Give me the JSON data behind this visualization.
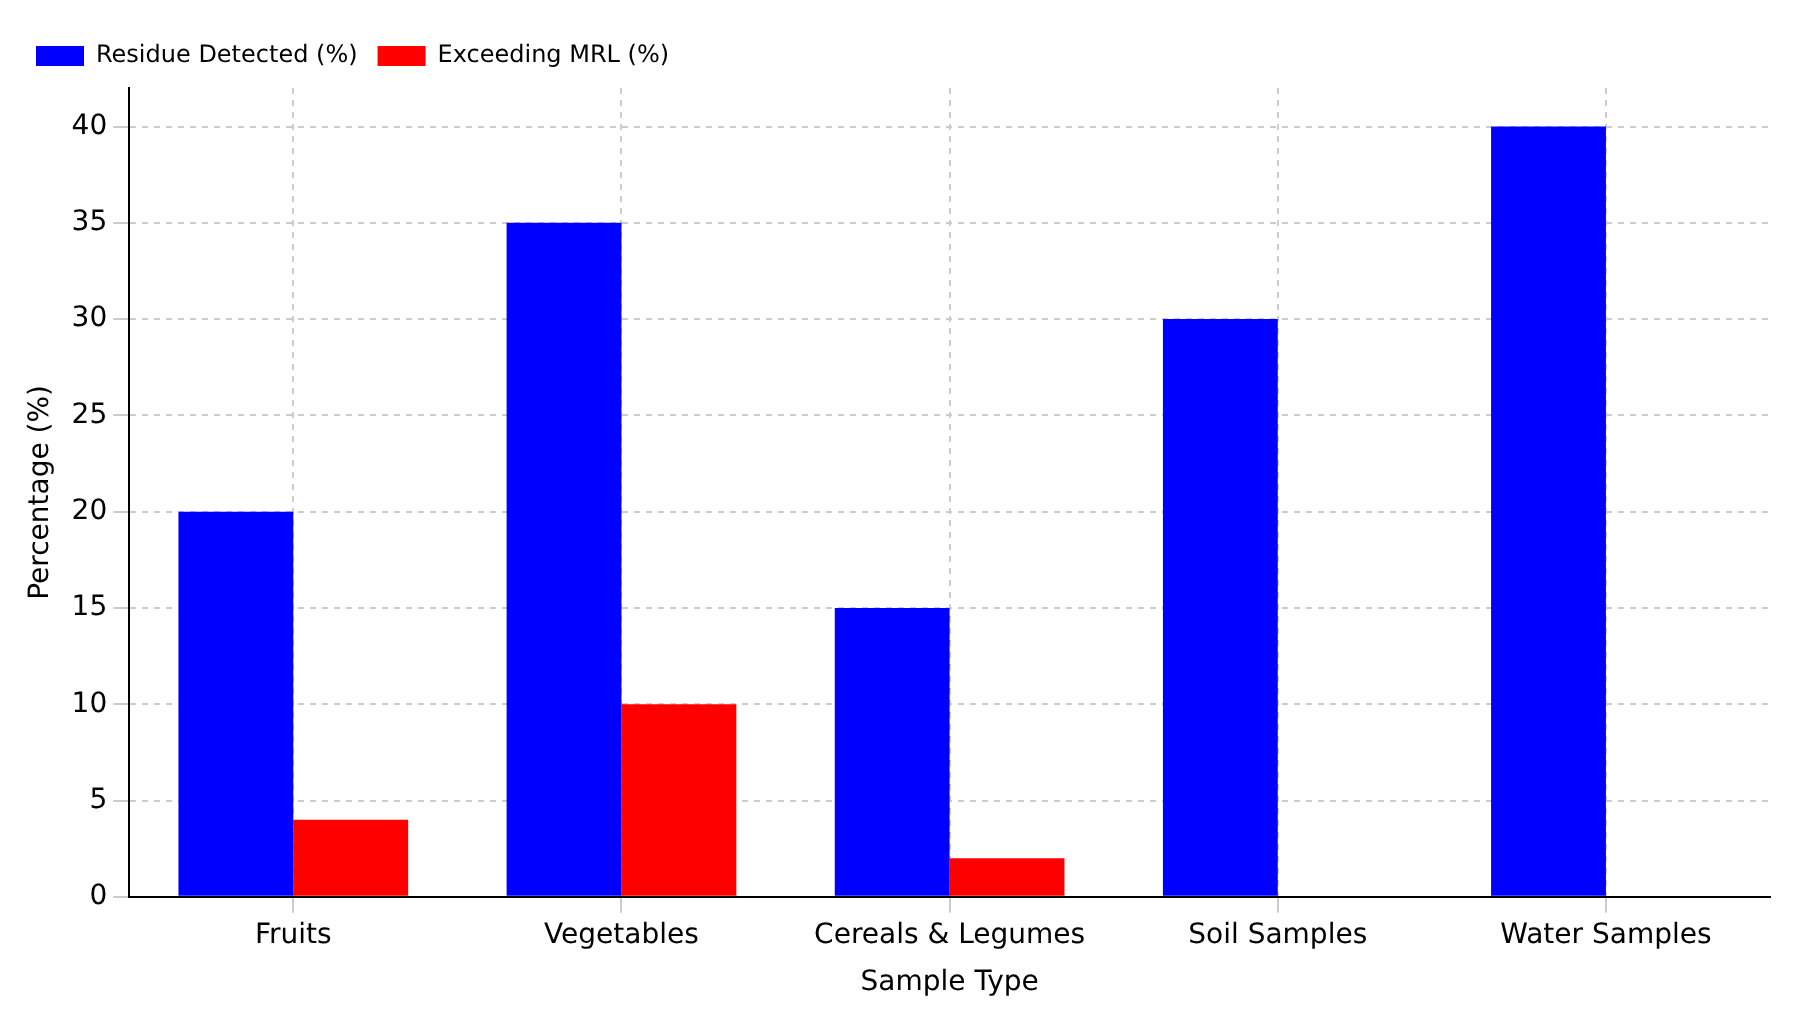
{
  "chart_data": {
    "type": "bar",
    "xlabel": "Sample Type",
    "ylabel": "Percentage (%)",
    "categories": [
      "Fruits",
      "Vegetables",
      "Cereals & Legumes",
      "Soil Samples",
      "Water Samples"
    ],
    "series": [
      {
        "name": "Residue Detected (%)",
        "color": "#0000ff",
        "values": [
          20,
          35,
          15,
          30,
          40
        ]
      },
      {
        "name": "Exceeding MRL (%)",
        "color": "#ff0000",
        "values": [
          4,
          10,
          2,
          0,
          0
        ]
      }
    ],
    "ylim": [
      0,
      42
    ],
    "yticks": [
      0,
      5,
      10,
      15,
      20,
      25,
      30,
      35,
      40
    ],
    "grid": true,
    "legend": "top left"
  }
}
